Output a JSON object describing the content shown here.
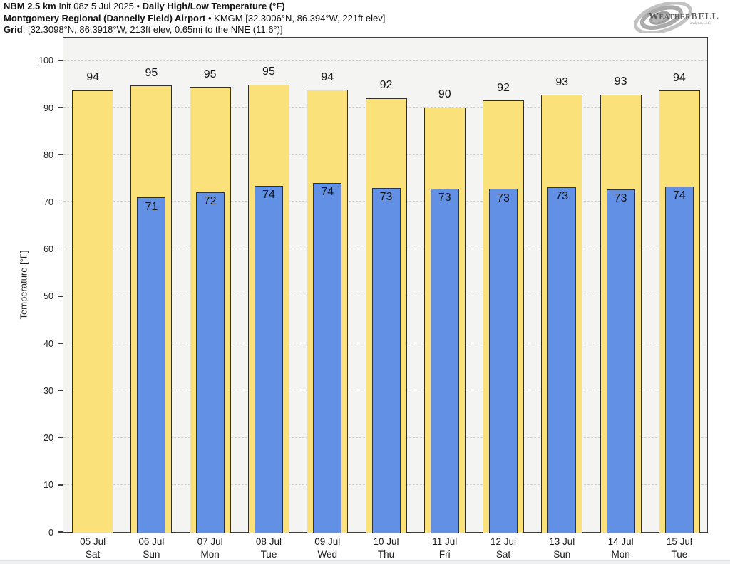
{
  "header": {
    "model": "NBM 2.5 km",
    "init": " Init 08z 5 Jul 2025 ",
    "separator": "•",
    "product": " Daily High/Low Temperature (°F)",
    "station": "Montgomery Regional (Dannelly Field) Airport",
    "station_sep": " • ",
    "station_meta": "KMGM [32.3006°N, 86.394°W, 221ft elev]",
    "grid_label": "Grid",
    "grid_meta": ": [32.3098°N, 86.3918°W, 213ft elev, 0.65mi to the NNE (11.6°)]"
  },
  "logo": {
    "brand": "WeatherBELL",
    "sub": "analytics LLC"
  },
  "chart_data": {
    "type": "bar",
    "title": "NBM 2.5 km Daily High/Low Temperature (°F) — Montgomery Regional (Dannelly Field) Airport KMGM",
    "xlabel": "",
    "ylabel": "Temperature [°F]",
    "ylim": [
      0,
      105.1
    ],
    "yticks": [
      0,
      10,
      20,
      30,
      40,
      50,
      60,
      70,
      80,
      90,
      100
    ],
    "grid": true,
    "plot_background": "#f4f4f2",
    "categories": [
      {
        "date": "05 Jul",
        "day": "Sat"
      },
      {
        "date": "06 Jul",
        "day": "Sun"
      },
      {
        "date": "07 Jul",
        "day": "Mon"
      },
      {
        "date": "08 Jul",
        "day": "Tue"
      },
      {
        "date": "09 Jul",
        "day": "Wed"
      },
      {
        "date": "10 Jul",
        "day": "Thu"
      },
      {
        "date": "11 Jul",
        "day": "Fri"
      },
      {
        "date": "12 Jul",
        "day": "Sat"
      },
      {
        "date": "13 Jul",
        "day": "Sun"
      },
      {
        "date": "14 Jul",
        "day": "Mon"
      },
      {
        "date": "15 Jul",
        "day": "Tue"
      }
    ],
    "series": [
      {
        "name": "Daily High",
        "color": "#fae17a",
        "labels": [
          94,
          95,
          95,
          95,
          94,
          92,
          90,
          92,
          93,
          93,
          94
        ],
        "values": [
          93.9,
          94.9,
          94.6,
          95.1,
          94.0,
          92.2,
          90.3,
          91.7,
          92.9,
          93.0,
          93.8
        ]
      },
      {
        "name": "Daily Low",
        "color": "#6190e4",
        "labels": [
          null,
          71,
          72,
          74,
          74,
          73,
          73,
          73,
          73,
          73,
          74
        ],
        "values": [
          null,
          71.2,
          72.3,
          73.7,
          74.3,
          73.2,
          73.1,
          73.0,
          73.4,
          72.9,
          73.5
        ]
      }
    ]
  }
}
